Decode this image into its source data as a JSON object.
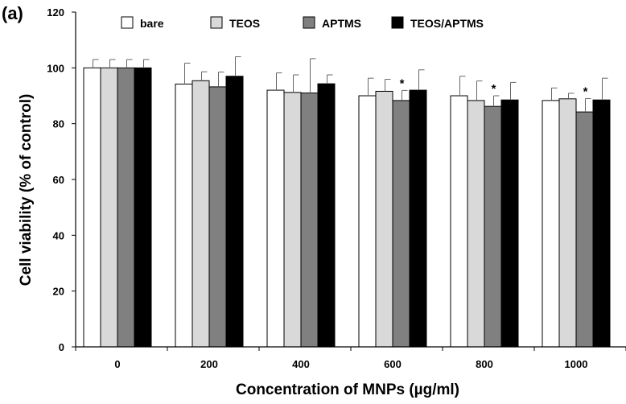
{
  "panel_label": "(a)",
  "chart_data": {
    "type": "bar",
    "title": "",
    "xlabel": "Concentration of MNPs (µg/ml)",
    "ylabel": "Cell viability (% of control)",
    "categories": [
      "0",
      "200",
      "400",
      "600",
      "800",
      "1000"
    ],
    "ylim": [
      0,
      120
    ],
    "yticks": [
      0,
      20,
      40,
      60,
      80,
      100,
      120
    ],
    "grid": false,
    "legend_position": "top",
    "series": [
      {
        "name": "bare",
        "color": "#ffffff",
        "values": [
          100,
          94.2,
          92,
          90,
          90,
          88.3
        ],
        "errors": [
          3,
          7.5,
          6.2,
          6.3,
          7,
          4.5
        ],
        "significant": [
          false,
          false,
          false,
          false,
          false,
          false
        ]
      },
      {
        "name": "TEOS",
        "color": "#d9d9d9",
        "values": [
          100,
          95.4,
          91.2,
          91.6,
          88.3,
          88.9
        ],
        "errors": [
          3,
          3.2,
          6.3,
          4.3,
          7,
          2
        ],
        "significant": [
          false,
          false,
          false,
          false,
          false,
          false
        ]
      },
      {
        "name": "APTMS",
        "color": "#808080",
        "values": [
          100,
          93.2,
          91,
          88.3,
          86.2,
          84.2
        ],
        "errors": [
          3,
          5.3,
          12.3,
          3.6,
          3.8,
          4.8
        ],
        "significant": [
          false,
          false,
          false,
          true,
          true,
          true
        ]
      },
      {
        "name": "TEOS/APTMS",
        "color": "#000000",
        "values": [
          100,
          97,
          94.3,
          92,
          88.5,
          88.5
        ],
        "errors": [
          3,
          7,
          3.2,
          7.3,
          6.3,
          7.8
        ],
        "significant": [
          false,
          false,
          false,
          false,
          false,
          false
        ]
      }
    ],
    "annotation_symbol": "*"
  }
}
